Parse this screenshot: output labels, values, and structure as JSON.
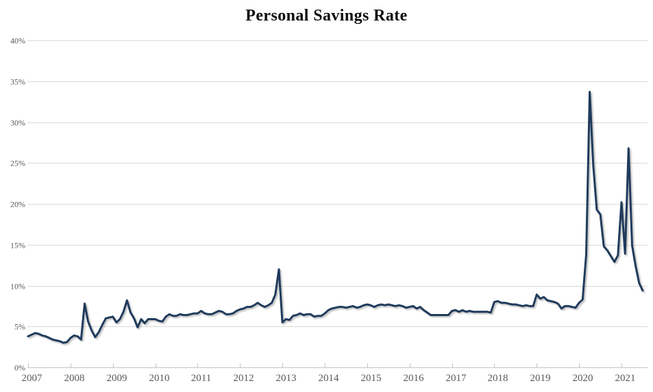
{
  "page": {
    "background": "#ffffff"
  },
  "chart_data": {
    "type": "line",
    "title": "Personal Savings Rate",
    "frequency": "monthly",
    "x_start_year": 2007,
    "x_tick_years": [
      2007,
      2008,
      2009,
      2010,
      2011,
      2012,
      2013,
      2014,
      2015,
      2016,
      2017,
      2018,
      2019,
      2020,
      2021
    ],
    "ylim": [
      0,
      40
    ],
    "y_tick_step": 5,
    "y_tick_suffix": "%",
    "grid": "horizontal",
    "legend": "none",
    "colors": {
      "line": "#1F3B5C",
      "grid": "#d9d9d9",
      "axis": "#c4c4c4",
      "tick_label": "#595959",
      "title": "#0d0d0d"
    },
    "series": [
      {
        "name": "Personal Savings Rate",
        "units": "percent",
        "values": [
          3.8,
          4.0,
          4.2,
          4.1,
          3.9,
          3.8,
          3.6,
          3.4,
          3.3,
          3.2,
          3.0,
          3.1,
          3.6,
          3.9,
          3.8,
          3.4,
          7.8,
          5.6,
          4.5,
          3.7,
          4.3,
          5.2,
          6.0,
          6.1,
          6.2,
          5.5,
          5.9,
          6.8,
          8.2,
          6.7,
          6.0,
          4.9,
          5.9,
          5.4,
          5.9,
          5.9,
          5.9,
          5.7,
          5.6,
          6.2,
          6.5,
          6.3,
          6.3,
          6.5,
          6.4,
          6.4,
          6.5,
          6.6,
          6.6,
          6.9,
          6.6,
          6.5,
          6.5,
          6.7,
          6.9,
          6.8,
          6.5,
          6.5,
          6.6,
          6.9,
          7.1,
          7.2,
          7.4,
          7.4,
          7.6,
          7.9,
          7.6,
          7.4,
          7.6,
          7.9,
          8.9,
          12.0,
          5.5,
          5.9,
          5.8,
          6.3,
          6.4,
          6.6,
          6.4,
          6.5,
          6.5,
          6.2,
          6.3,
          6.3,
          6.6,
          7.0,
          7.2,
          7.3,
          7.4,
          7.4,
          7.3,
          7.4,
          7.5,
          7.3,
          7.4,
          7.6,
          7.7,
          7.6,
          7.4,
          7.6,
          7.7,
          7.6,
          7.7,
          7.6,
          7.5,
          7.6,
          7.5,
          7.3,
          7.4,
          7.5,
          7.2,
          7.4,
          7.0,
          6.7,
          6.4,
          6.4,
          6.4,
          6.4,
          6.4,
          6.4,
          6.9,
          7.0,
          6.8,
          7.0,
          6.8,
          6.9,
          6.8,
          6.8,
          6.8,
          6.8,
          6.8,
          6.7,
          8.0,
          8.1,
          7.9,
          7.9,
          7.8,
          7.7,
          7.7,
          7.6,
          7.5,
          7.6,
          7.5,
          7.5,
          8.9,
          8.4,
          8.6,
          8.2,
          8.1,
          8.0,
          7.8,
          7.2,
          7.5,
          7.5,
          7.4,
          7.3,
          7.9,
          8.3,
          13.8,
          33.7,
          24.7,
          19.3,
          18.7,
          14.8,
          14.3,
          13.6,
          12.9,
          13.7,
          20.2,
          13.9,
          26.8,
          14.9,
          12.4,
          10.3,
          9.4
        ]
      }
    ]
  }
}
